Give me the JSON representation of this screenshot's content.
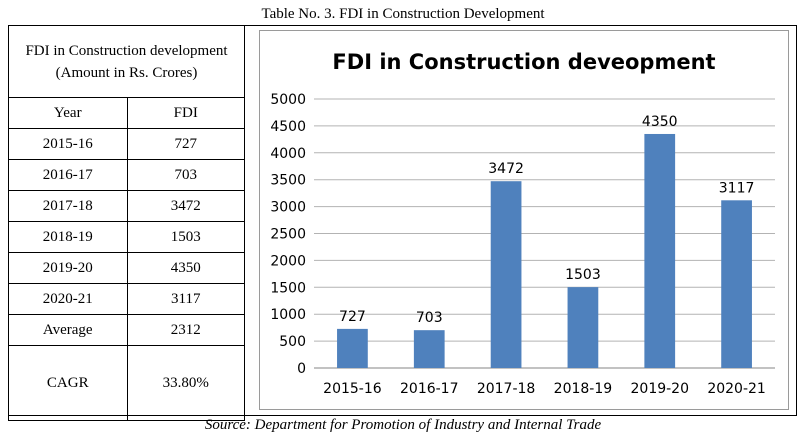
{
  "caption": "Table No. 3. FDI in Construction Development",
  "table": {
    "header": "FDI in Construction development (Amount in Rs. Crores)",
    "columns": [
      "Year",
      "FDI"
    ],
    "rows": [
      [
        "2015-16",
        "727"
      ],
      [
        "2016-17",
        "703"
      ],
      [
        "2017-18",
        "3472"
      ],
      [
        "2018-19",
        "1503"
      ],
      [
        "2019-20",
        "4350"
      ],
      [
        "2020-21",
        "3117"
      ],
      [
        "Average",
        "2312"
      ]
    ],
    "cagr": {
      "label": "CAGR",
      "value": "33.80%"
    }
  },
  "chart_data": {
    "type": "bar",
    "title": "FDI in Construction deveopment",
    "categories": [
      "2015-16",
      "2016-17",
      "2017-18",
      "2018-19",
      "2019-20",
      "2020-21"
    ],
    "values": [
      727,
      703,
      3472,
      1503,
      4350,
      3117
    ],
    "xlabel": "",
    "ylabel": "",
    "ylim": [
      0,
      5000
    ],
    "yticks": [
      0,
      500,
      1000,
      1500,
      2000,
      2500,
      3000,
      3500,
      4000,
      4500,
      5000
    ],
    "grid": true,
    "legend": "none",
    "bar_color": "#4f81bd",
    "grid_color": "#b3b3b3"
  },
  "source": "Source: Department for Promotion of Industry and Internal Trade"
}
